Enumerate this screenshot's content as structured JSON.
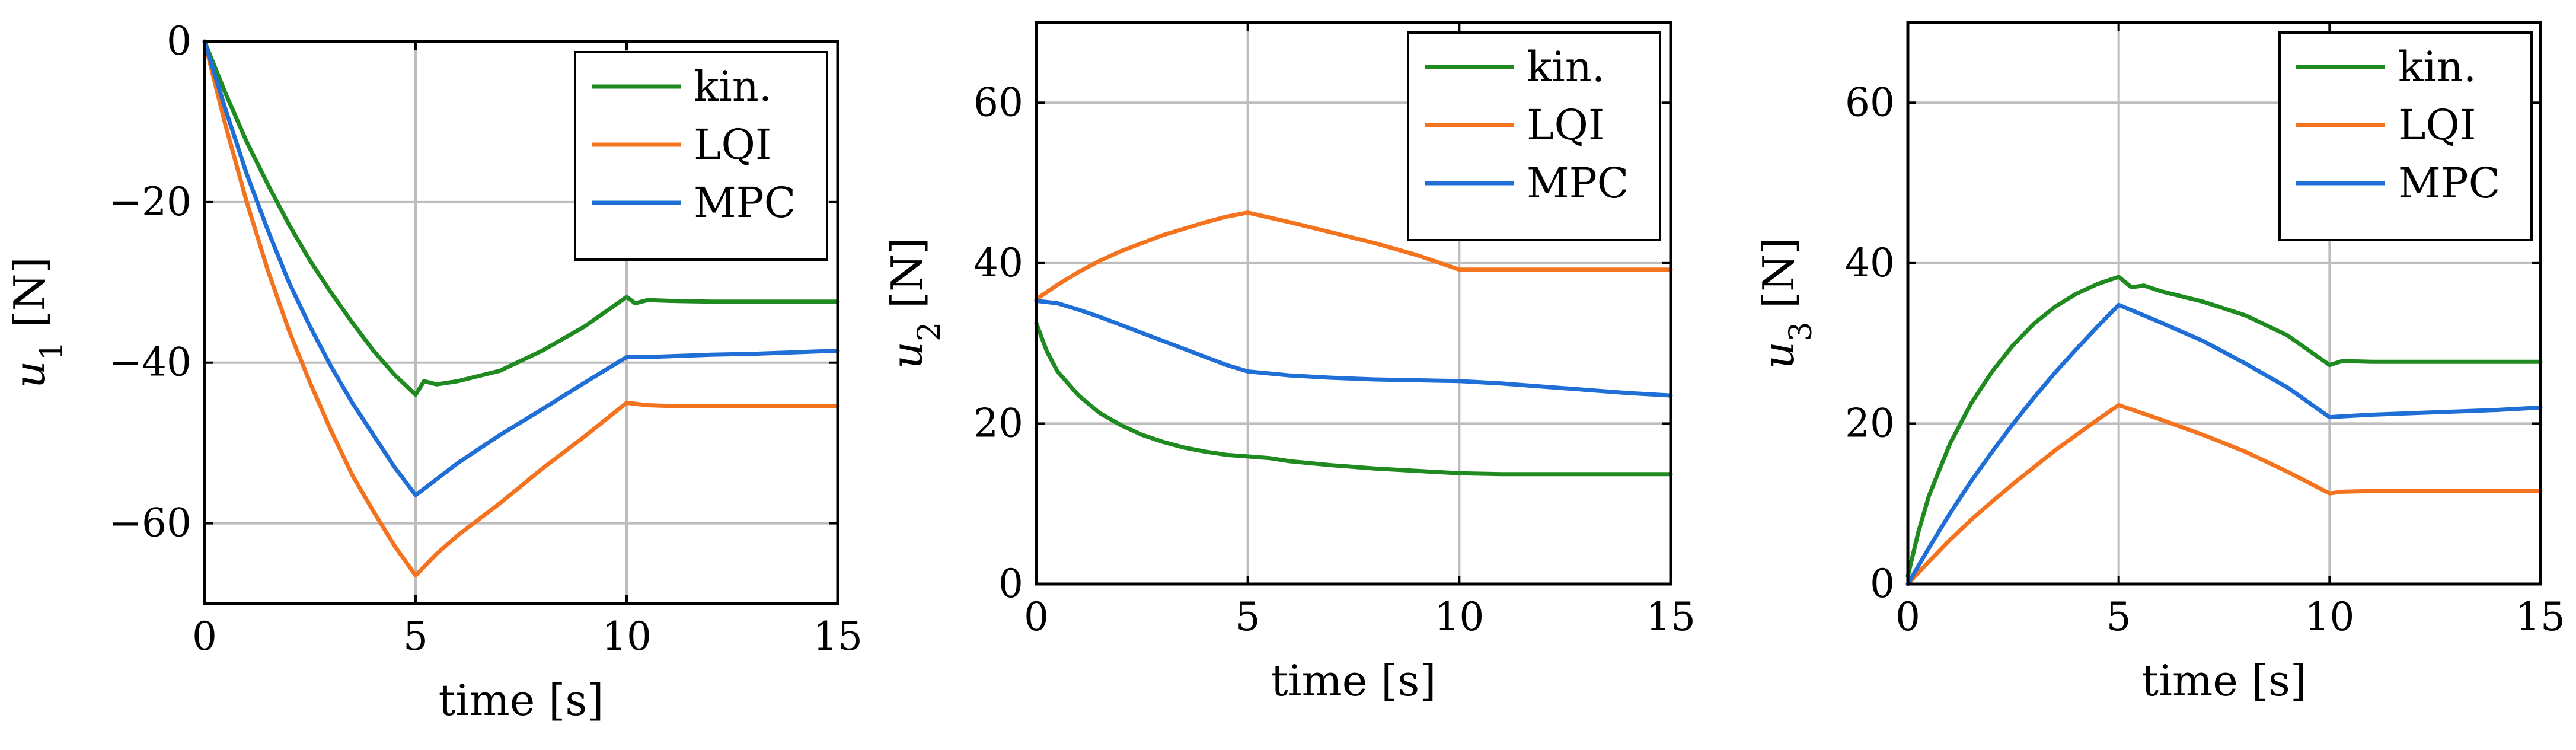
{
  "chart_data": [
    {
      "type": "line",
      "xlabel": "time [s]",
      "ylabel": "u",
      "ylabel_sub": "1",
      "ylabel_unit": "[N]",
      "xlim": [
        0,
        15
      ],
      "ylim": [
        -70,
        0
      ],
      "xticks": [
        0,
        5,
        10,
        15
      ],
      "yticks": [
        0,
        -20,
        -40,
        -60
      ],
      "xtick_labels": [
        "0",
        "5",
        "10",
        "15"
      ],
      "ytick_labels": [
        "0",
        "−20",
        "−40",
        "−60"
      ],
      "grid": true,
      "legend_position": "top-right",
      "series": [
        {
          "name": "kin.",
          "color": "#1f8a1f",
          "x": [
            0,
            0.5,
            1,
            1.5,
            2,
            2.5,
            3,
            3.5,
            4,
            4.5,
            5,
            5.2,
            5.5,
            6,
            7,
            8,
            9,
            10,
            10.2,
            10.5,
            11,
            12,
            13,
            14,
            15
          ],
          "y": [
            0,
            -6.5,
            -12.5,
            -17.8,
            -22.8,
            -27.3,
            -31.3,
            -35,
            -38.5,
            -41.5,
            -44,
            -42.3,
            -42.7,
            -42.3,
            -41,
            -38.5,
            -35.5,
            -31.8,
            -32.6,
            -32.2,
            -32.3,
            -32.4,
            -32.4,
            -32.4,
            -32.4
          ]
        },
        {
          "name": "LQI",
          "color": "#f4731f",
          "x": [
            0,
            0.5,
            1,
            1.5,
            2,
            2.5,
            3,
            3.5,
            4,
            4.5,
            5,
            5.5,
            6,
            7,
            8,
            9,
            10,
            10.5,
            11,
            12,
            13,
            14,
            15
          ],
          "y": [
            0,
            -10.5,
            -20,
            -28.5,
            -36,
            -42.5,
            -48.5,
            -54,
            -58.5,
            -62.8,
            -66.5,
            -63.8,
            -61.5,
            -57.5,
            -53.2,
            -49.2,
            -45,
            -45.3,
            -45.4,
            -45.4,
            -45.4,
            -45.4,
            -45.4
          ]
        },
        {
          "name": "MPC",
          "color": "#1f6fd6",
          "x": [
            0,
            0.5,
            1,
            1.5,
            2,
            2.5,
            3,
            3.5,
            4,
            4.5,
            5,
            5.5,
            6,
            7,
            8,
            9,
            10,
            10.5,
            11,
            12,
            13,
            14,
            15
          ],
          "y": [
            0,
            -8.5,
            -16.5,
            -23.5,
            -30,
            -35.5,
            -40.5,
            -45,
            -49,
            -53,
            -56.5,
            -54.5,
            -52.5,
            -49,
            -45.8,
            -42.5,
            -39.3,
            -39.3,
            -39.2,
            -39,
            -38.9,
            -38.7,
            -38.5
          ]
        }
      ]
    },
    {
      "type": "line",
      "xlabel": "time [s]",
      "ylabel": "u",
      "ylabel_sub": "2",
      "ylabel_unit": "[N]",
      "xlim": [
        0,
        15
      ],
      "ylim": [
        0,
        70
      ],
      "xticks": [
        0,
        5,
        10,
        15
      ],
      "yticks": [
        0,
        20,
        40,
        60
      ],
      "xtick_labels": [
        "0",
        "5",
        "10",
        "15"
      ],
      "ytick_labels": [
        "0",
        "20",
        "40",
        "60"
      ],
      "grid": true,
      "legend_position": "top-right",
      "series": [
        {
          "name": "kin.",
          "color": "#1f8a1f",
          "x": [
            0,
            0.25,
            0.5,
            1,
            1.5,
            2,
            2.5,
            3,
            3.5,
            4,
            4.5,
            5,
            5.5,
            6,
            7,
            8,
            9,
            10,
            11,
            12,
            13,
            14,
            15
          ],
          "y": [
            32.5,
            29,
            26.5,
            23.5,
            21.3,
            19.8,
            18.6,
            17.7,
            17,
            16.5,
            16.1,
            15.9,
            15.7,
            15.3,
            14.8,
            14.4,
            14.1,
            13.8,
            13.7,
            13.7,
            13.7,
            13.7,
            13.7
          ]
        },
        {
          "name": "LQI",
          "color": "#f4731f",
          "x": [
            0,
            0.5,
            1,
            1.5,
            2,
            2.5,
            3,
            3.5,
            4,
            4.5,
            5,
            6,
            7,
            8,
            9,
            10,
            11,
            12,
            13,
            14,
            15
          ],
          "y": [
            35.5,
            37.3,
            38.9,
            40.3,
            41.5,
            42.5,
            43.5,
            44.3,
            45.1,
            45.8,
            46.3,
            45.1,
            43.8,
            42.5,
            41,
            39.2,
            39.2,
            39.2,
            39.2,
            39.2,
            39.2
          ]
        },
        {
          "name": "MPC",
          "color": "#1f6fd6",
          "x": [
            0,
            0.5,
            1,
            1.5,
            2,
            2.5,
            3,
            3.5,
            4,
            4.5,
            5,
            6,
            7,
            8,
            9,
            10,
            11,
            12,
            13,
            14,
            15
          ],
          "y": [
            35.3,
            35,
            34.2,
            33.3,
            32.3,
            31.3,
            30.3,
            29.3,
            28.3,
            27.3,
            26.5,
            26,
            25.7,
            25.5,
            25.4,
            25.3,
            25,
            24.6,
            24.2,
            23.8,
            23.5
          ]
        }
      ]
    },
    {
      "type": "line",
      "xlabel": "time [s]",
      "ylabel": "u",
      "ylabel_sub": "3",
      "ylabel_unit": "[N]",
      "xlim": [
        0,
        15
      ],
      "ylim": [
        0,
        70
      ],
      "xticks": [
        0,
        5,
        10,
        15
      ],
      "yticks": [
        0,
        20,
        40,
        60
      ],
      "xtick_labels": [
        "0",
        "5",
        "10",
        "15"
      ],
      "ytick_labels": [
        "0",
        "20",
        "40",
        "60"
      ],
      "grid": true,
      "legend_position": "top-right",
      "series": [
        {
          "name": "kin.",
          "color": "#1f8a1f",
          "x": [
            0,
            0.25,
            0.5,
            1,
            1.5,
            2,
            2.5,
            3,
            3.5,
            4,
            4.5,
            5,
            5.3,
            5.6,
            6,
            7,
            8,
            9,
            10,
            10.3,
            11,
            12,
            13,
            14,
            15
          ],
          "y": [
            1,
            6.5,
            11,
            17.5,
            22.5,
            26.5,
            29.8,
            32.5,
            34.6,
            36.2,
            37.4,
            38.3,
            37,
            37.2,
            36.5,
            35.2,
            33.5,
            31,
            27.3,
            27.8,
            27.7,
            27.7,
            27.7,
            27.7,
            27.7
          ]
        },
        {
          "name": "LQI",
          "color": "#f4731f",
          "x": [
            0,
            0.5,
            1,
            1.5,
            2,
            2.5,
            3,
            3.5,
            4,
            4.5,
            5,
            6,
            7,
            8,
            9,
            10,
            10.3,
            11,
            12,
            13,
            14,
            15
          ],
          "y": [
            0,
            2.8,
            5.5,
            8,
            10.3,
            12.5,
            14.6,
            16.7,
            18.6,
            20.5,
            22.3,
            20.5,
            18.6,
            16.5,
            14,
            11.3,
            11.5,
            11.6,
            11.6,
            11.6,
            11.6,
            11.6
          ]
        },
        {
          "name": "MPC",
          "color": "#1f6fd6",
          "x": [
            0,
            0.5,
            1,
            1.5,
            2,
            2.5,
            3,
            3.5,
            4,
            4.5,
            5,
            6,
            7,
            8,
            9,
            10,
            10.3,
            11,
            12,
            13,
            14,
            15
          ],
          "y": [
            0,
            4.5,
            8.8,
            12.8,
            16.5,
            20,
            23.3,
            26.4,
            29.3,
            32.1,
            34.8,
            32.6,
            30.3,
            27.5,
            24.5,
            20.8,
            20.9,
            21.1,
            21.3,
            21.5,
            21.7,
            22
          ]
        }
      ]
    }
  ]
}
